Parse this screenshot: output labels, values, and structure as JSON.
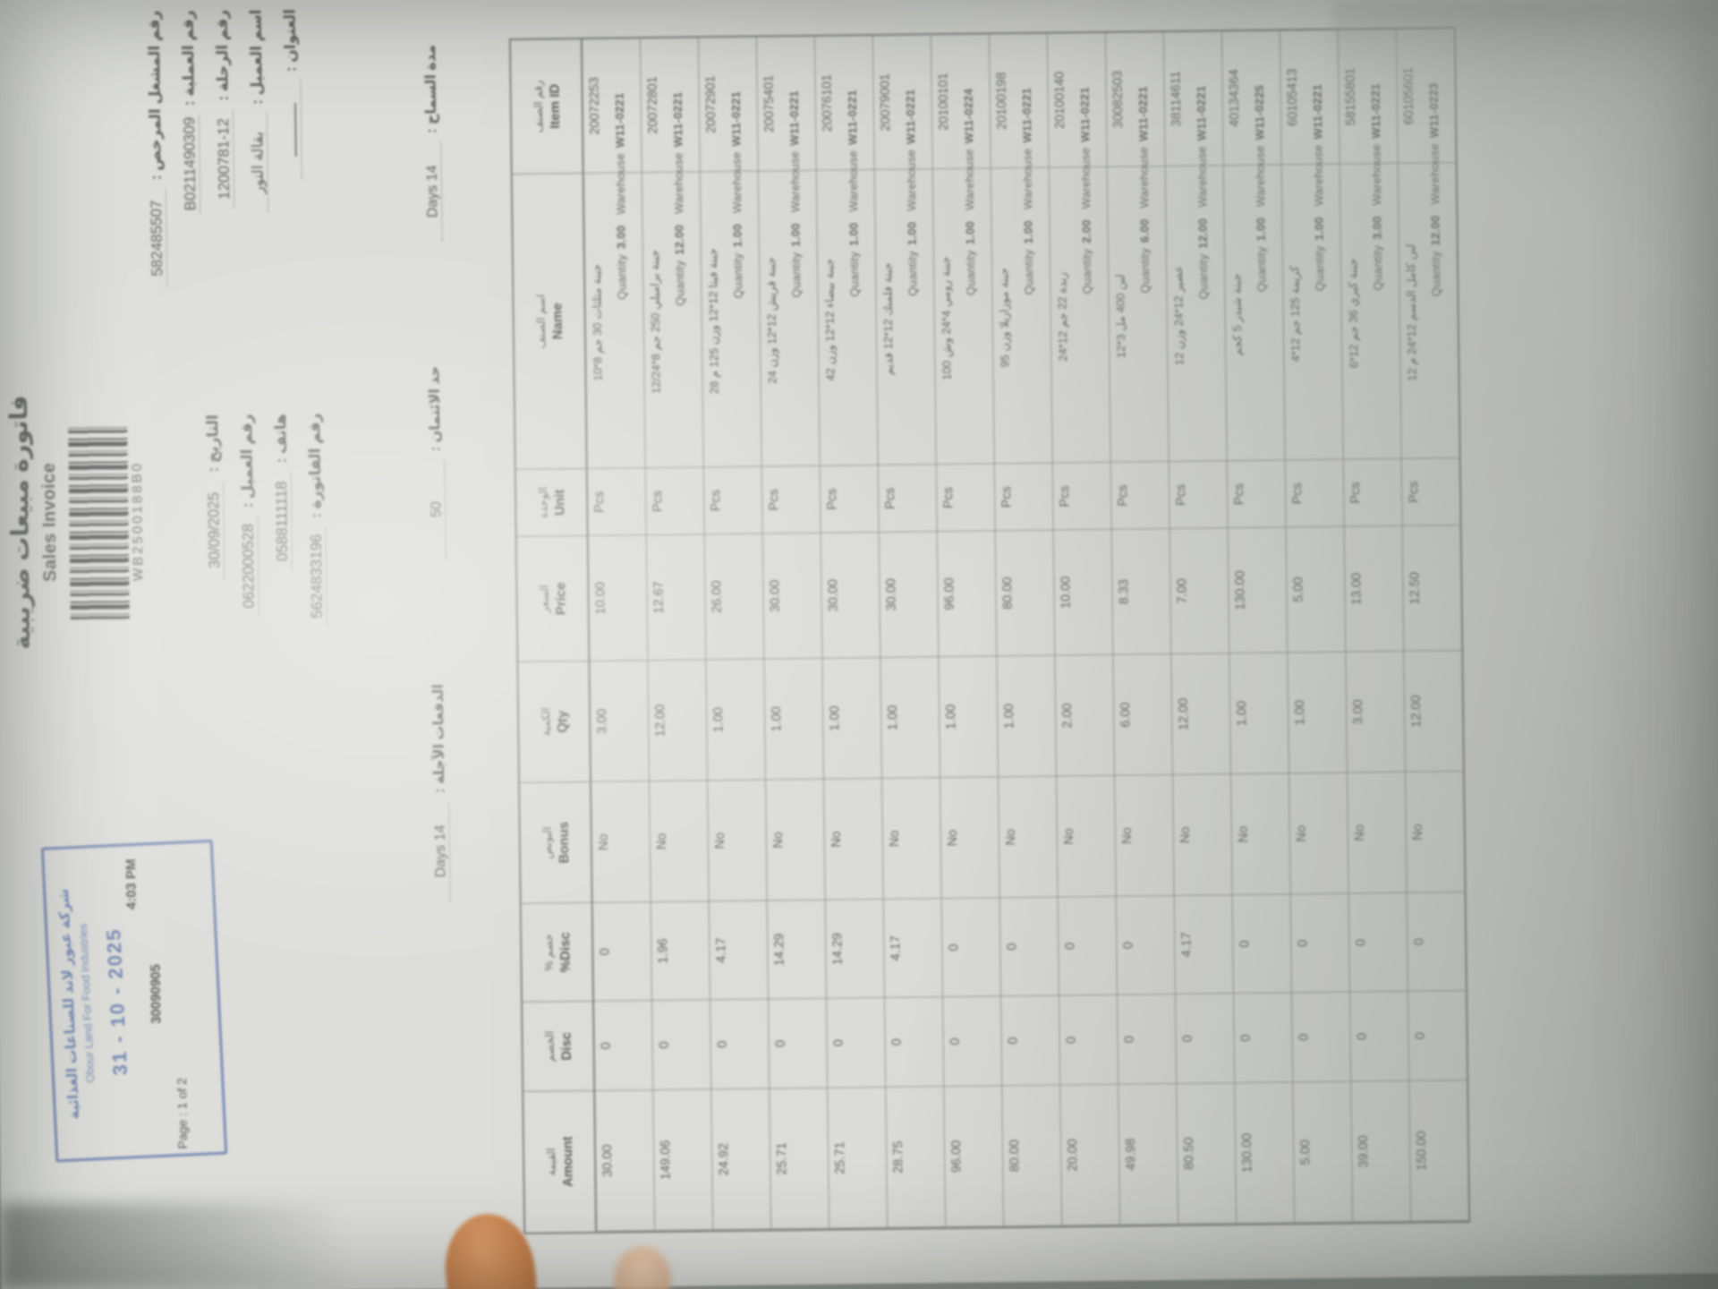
{
  "photo": {
    "background_color": "#a2a7a3",
    "paper_color": "#edece8",
    "ink_color": "#474747",
    "stamp_color": "#4d6fbe",
    "finger_color": "#c07a46"
  },
  "invoice": {
    "title_ar": "فاتورة مبيعات ضريبية",
    "title_en": "Sales Invoice",
    "barcode_text": "WB2500188B0",
    "header_fields_right": [
      {
        "label": "رقم المشغل المرخص :",
        "value": "582485507"
      },
      {
        "label": "رقم العملية :",
        "value": "B0211490309"
      },
      {
        "label": "رقم الرحلة :",
        "value": "1200781-12"
      },
      {
        "label": "اسم العميل :",
        "value": "بقالة النور"
      },
      {
        "label": "العنوان :",
        "value": "ــــــــــــ"
      }
    ],
    "header_fields_mid": [
      {
        "label": "التاريخ :",
        "value": "30/09/2025"
      },
      {
        "label": "رقم العميل :",
        "value": "0622000528"
      },
      {
        "label": "هاتف :",
        "value": "0588111118"
      },
      {
        "label": "رقم الفاتورة :",
        "value": "5624833196"
      }
    ],
    "terms_fields": [
      {
        "label": "مدة السماح :",
        "value": "14 Days"
      },
      {
        "label": "حد الائتمان :",
        "value": "50"
      },
      {
        "label": "الدفعات الآجلة :",
        "value": "14 Days"
      }
    ],
    "stamp": {
      "line_ar": "شركة عبور لاند للصناعات الغذائية",
      "line_en": "Obour Land For Food Industries",
      "date": "31 - 10 - 2025",
      "time": "4:03 PM",
      "code": "30090905",
      "page": "Page : 1 of 2"
    },
    "table": {
      "sub_prefix": "Quantity",
      "sub_wh_label": "Warehouse",
      "columns": [
        {
          "key": "id",
          "en": "Item ID",
          "ar": "رقم الصنف"
        },
        {
          "key": "name_ar",
          "en": "Name",
          "ar": "اسم الصنف"
        },
        {
          "key": "unit",
          "en": "Unit",
          "ar": "الوحدة"
        },
        {
          "key": "price",
          "en": "Price",
          "ar": "السعر"
        },
        {
          "key": "qty",
          "en": "Qty",
          "ar": "الكمية"
        },
        {
          "key": "bonus",
          "en": "Bonus",
          "ar": "البونص"
        },
        {
          "key": "disc_pct",
          "en": "Disc%",
          "ar": "خصم %"
        },
        {
          "key": "disc",
          "en": "Disc",
          "ar": "الخصم"
        },
        {
          "key": "amount",
          "en": "Amount",
          "ar": "القيمة"
        }
      ],
      "rows": [
        {
          "id": "20072253",
          "name_ar": "جبنة مثلثات 30 جم 8*10",
          "unit": "Pcs",
          "price": "10.00",
          "qty": "3.00",
          "bonus": "No",
          "disc_pct": "0",
          "disc": "0",
          "amount": "30.00",
          "wh": "W11-0221"
        },
        {
          "id": "20072801",
          "name_ar": "جبنة براميلي 250 جم 8*12/24",
          "unit": "Pcs",
          "price": "12.67",
          "qty": "12.00",
          "bonus": "No",
          "disc_pct": "1.96",
          "disc": "0",
          "amount": "149.06",
          "wh": "W11-0221"
        },
        {
          "id": "20072901",
          "name_ar": "جبنة فيتا 12*12 وزن 125 م 28",
          "unit": "Pcs",
          "price": "26.00",
          "qty": "1.00",
          "bonus": "No",
          "disc_pct": "4.17",
          "disc": "0",
          "amount": "24.92",
          "wh": "W11-0221"
        },
        {
          "id": "20075401",
          "name_ar": "جبنة قريش 12*12 وزن 24",
          "unit": "Pcs",
          "price": "30.00",
          "qty": "1.00",
          "bonus": "No",
          "disc_pct": "14.29",
          "disc": "0",
          "amount": "25.71",
          "wh": "W11-0221"
        },
        {
          "id": "20076101",
          "name_ar": "جبنة بيضاء 12*12 وزن 42",
          "unit": "Pcs",
          "price": "30.00",
          "qty": "1.00",
          "bonus": "No",
          "disc_pct": "14.29",
          "disc": "0",
          "amount": "25.71",
          "wh": "W11-0221"
        },
        {
          "id": "20079001",
          "name_ar": "جبنة فلمنك 12*12 قديم",
          "unit": "Pcs",
          "price": "30.00",
          "qty": "1.00",
          "bonus": "No",
          "disc_pct": "4.17",
          "disc": "0",
          "amount": "28.75",
          "wh": "W11-0221"
        },
        {
          "id": "20100101",
          "name_ar": "جبنة رومي 4*24 وش 100",
          "unit": "Pcs",
          "price": "96.00",
          "qty": "1.00",
          "bonus": "No",
          "disc_pct": "0",
          "disc": "0",
          "amount": "96.00",
          "wh": "W11-0224"
        },
        {
          "id": "20100198",
          "name_ar": "جبنة موزاريلا وزن 95",
          "unit": "Pcs",
          "price": "80.00",
          "qty": "1.00",
          "bonus": "No",
          "disc_pct": "0",
          "disc": "0",
          "amount": "80.00",
          "wh": "W11-0221"
        },
        {
          "id": "20100140",
          "name_ar": "زبدة 22 جم 12*24",
          "unit": "Pcs",
          "price": "10.00",
          "qty": "2.00",
          "bonus": "No",
          "disc_pct": "0",
          "disc": "0",
          "amount": "20.00",
          "wh": "W11-0221"
        },
        {
          "id": "30082503",
          "name_ar": "لبن 400 مل 3*12",
          "unit": "Pcs",
          "price": "8.33",
          "qty": "6.00",
          "bonus": "No",
          "disc_pct": "0",
          "disc": "0",
          "amount": "49.98",
          "wh": "W11-0221"
        },
        {
          "id": "38114611",
          "name_ar": "عصير 12*24 وزن 12",
          "unit": "Pcs",
          "price": "7.00",
          "qty": "12.00",
          "bonus": "No",
          "disc_pct": "4.17",
          "disc": "0",
          "amount": "80.50",
          "wh": "W11-0221"
        },
        {
          "id": "40134364",
          "name_ar": "جبنة شيدر 5 كجم",
          "unit": "Pcs",
          "price": "130.00",
          "qty": "1.00",
          "bonus": "No",
          "disc_pct": "0",
          "disc": "0",
          "amount": "130.00",
          "wh": "W11-0225"
        },
        {
          "id": "60105413",
          "name_ar": "كريمة 125 جم 12*4",
          "unit": "Pcs",
          "price": "5.00",
          "qty": "1.00",
          "bonus": "No",
          "disc_pct": "0",
          "disc": "0",
          "amount": "5.00",
          "wh": "W11-0221"
        },
        {
          "id": "58155801",
          "name_ar": "جبنة كيري 36 جم 12*6",
          "unit": "Pcs",
          "price": "13.00",
          "qty": "3.00",
          "bonus": "No",
          "disc_pct": "0",
          "disc": "0",
          "amount": "39.00",
          "wh": "W11-0221"
        },
        {
          "id": "60105601",
          "name_ar": "لبن كامل الدسم 12*24 م 12",
          "unit": "Pcs",
          "price": "12.50",
          "qty": "12.00",
          "bonus": "No",
          "disc_pct": "0",
          "disc": "0",
          "amount": "150.00",
          "wh": "W11-0223"
        }
      ]
    }
  }
}
